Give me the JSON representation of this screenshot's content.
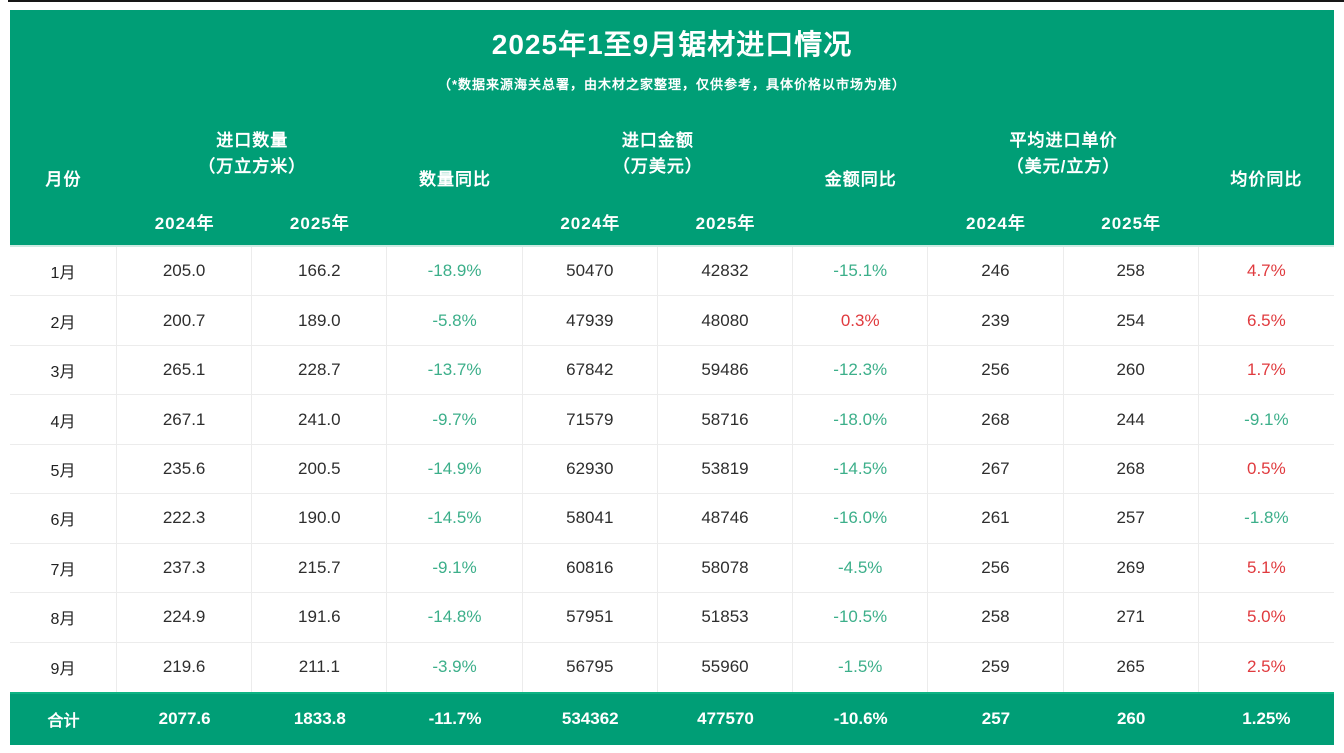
{
  "colors": {
    "panel_green": "#009e76",
    "footer_divider_green": "#0db383",
    "header_body_divider": "#cdeae2",
    "down_green": "#3caf8a",
    "up_red": "#e03a3e",
    "body_text": "#2e2e2e"
  },
  "header": {
    "title": "2025年1至9月锯材进口情况",
    "subtitle": "（*数据来源海关总署，由木材之家整理，仅供参考，具体价格以市场为准）"
  },
  "chart_data": {
    "type": "table",
    "title": "2025年1至9月锯材进口情况",
    "column_headers": {
      "month": "月份",
      "qty_group_line1": "进口数量",
      "qty_group_line2": "（万立方米）",
      "qty_yoy": "数量同比",
      "amt_group_line1": "进口金额",
      "amt_group_line2": "（万美元）",
      "amt_yoy": "金额同比",
      "price_group_line1": "平均进口单价",
      "price_group_line2": "（美元/立方）",
      "price_yoy": "均价同比",
      "year_2024": "2024年",
      "year_2025": "2025年"
    },
    "rows": [
      {
        "month": "1月",
        "qty_2024": "205.0",
        "qty_2025": "166.2",
        "qty_yoy": "-18.9%",
        "amt_2024": "50470",
        "amt_2025": "42832",
        "amt_yoy": "-15.1%",
        "price_2024": "246",
        "price_2025": "258",
        "price_yoy": "4.7%"
      },
      {
        "month": "2月",
        "qty_2024": "200.7",
        "qty_2025": "189.0",
        "qty_yoy": "-5.8%",
        "amt_2024": "47939",
        "amt_2025": "48080",
        "amt_yoy": "0.3%",
        "price_2024": "239",
        "price_2025": "254",
        "price_yoy": "6.5%"
      },
      {
        "month": "3月",
        "qty_2024": "265.1",
        "qty_2025": "228.7",
        "qty_yoy": "-13.7%",
        "amt_2024": "67842",
        "amt_2025": "59486",
        "amt_yoy": "-12.3%",
        "price_2024": "256",
        "price_2025": "260",
        "price_yoy": "1.7%"
      },
      {
        "month": "4月",
        "qty_2024": "267.1",
        "qty_2025": "241.0",
        "qty_yoy": "-9.7%",
        "amt_2024": "71579",
        "amt_2025": "58716",
        "amt_yoy": "-18.0%",
        "price_2024": "268",
        "price_2025": "244",
        "price_yoy": "-9.1%"
      },
      {
        "month": "5月",
        "qty_2024": "235.6",
        "qty_2025": "200.5",
        "qty_yoy": "-14.9%",
        "amt_2024": "62930",
        "amt_2025": "53819",
        "amt_yoy": "-14.5%",
        "price_2024": "267",
        "price_2025": "268",
        "price_yoy": "0.5%"
      },
      {
        "month": "6月",
        "qty_2024": "222.3",
        "qty_2025": "190.0",
        "qty_yoy": "-14.5%",
        "amt_2024": "58041",
        "amt_2025": "48746",
        "amt_yoy": "-16.0%",
        "price_2024": "261",
        "price_2025": "257",
        "price_yoy": "-1.8%"
      },
      {
        "month": "7月",
        "qty_2024": "237.3",
        "qty_2025": "215.7",
        "qty_yoy": "-9.1%",
        "amt_2024": "60816",
        "amt_2025": "58078",
        "amt_yoy": "-4.5%",
        "price_2024": "256",
        "price_2025": "269",
        "price_yoy": "5.1%"
      },
      {
        "month": "8月",
        "qty_2024": "224.9",
        "qty_2025": "191.6",
        "qty_yoy": "-14.8%",
        "amt_2024": "57951",
        "amt_2025": "51853",
        "amt_yoy": "-10.5%",
        "price_2024": "258",
        "price_2025": "271",
        "price_yoy": "5.0%"
      },
      {
        "month": "9月",
        "qty_2024": "219.6",
        "qty_2025": "211.1",
        "qty_yoy": "-3.9%",
        "amt_2024": "56795",
        "amt_2025": "55960",
        "amt_yoy": "-1.5%",
        "price_2024": "259",
        "price_2025": "265",
        "price_yoy": "2.5%"
      }
    ],
    "total": {
      "label": "合计",
      "qty_2024": "2077.6",
      "qty_2025": "1833.8",
      "qty_yoy": "-11.7%",
      "amt_2024": "534362",
      "amt_2025": "477570",
      "amt_yoy": "-10.6%",
      "price_2024": "257",
      "price_2025": "260",
      "price_yoy": "1.25%"
    }
  }
}
